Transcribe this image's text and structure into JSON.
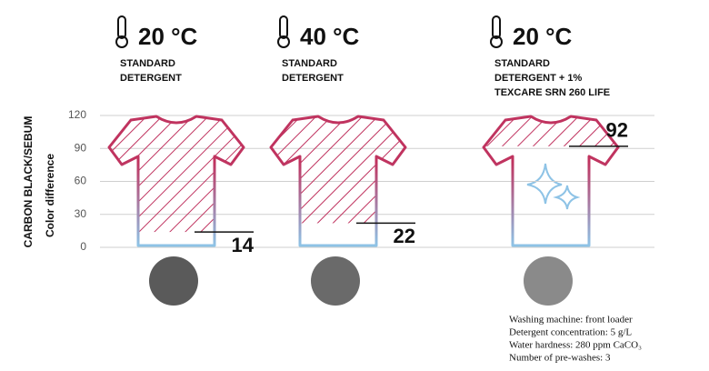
{
  "chart_data": {
    "type": "bar",
    "y_label": "CARBON BLACK/SEBUM",
    "y_sublabel": "Color difference",
    "groups": [
      {
        "temperature": "20 °C",
        "label": [
          "STANDARD",
          "DETERGENT"
        ]
      },
      {
        "temperature": "40 °C",
        "label": [
          "STANDARD",
          "DETERGENT"
        ]
      },
      {
        "temperature": "20 °C",
        "label": [
          "STANDARD",
          "DETERGENT + 1%",
          "TEXCARE SRN 260 LIFE"
        ]
      }
    ],
    "values": [
      14,
      22,
      92
    ],
    "color": "#c0335f",
    "bottom_color": "#8ec3e6",
    "ylim": [
      0,
      120
    ],
    "yticks": [
      0,
      30,
      60,
      90,
      120
    ],
    "grid": true,
    "notes": [
      "Washing machine: front loader",
      "Detergent concentration: 5 g/L",
      "Water hardness: 280 ppm CaCO₃",
      "Number of pre-washes: 3"
    ]
  }
}
